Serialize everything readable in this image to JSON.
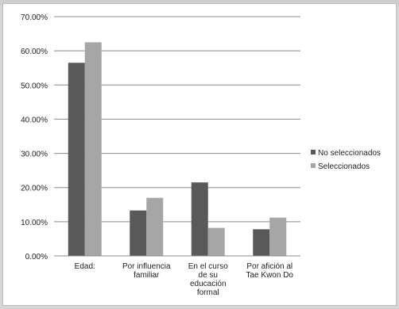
{
  "chart_data": {
    "type": "bar",
    "categories": [
      [
        "Edad:"
      ],
      [
        "Por influencia",
        "familiar"
      ],
      [
        "En el curso",
        "de su",
        "educación",
        "formal"
      ],
      [
        "Por afición al",
        "Tae Kwon Do"
      ]
    ],
    "series": [
      {
        "name": "No seleccionados",
        "values": [
          0.565,
          0.133,
          0.215,
          0.078
        ],
        "color": "#595959"
      },
      {
        "name": "Seleccionados",
        "values": [
          0.625,
          0.17,
          0.082,
          0.112
        ],
        "color": "#a6a6a6"
      }
    ],
    "y_ticks": [
      "0.00%",
      "10.00%",
      "20.00%",
      "30.00%",
      "40.00%",
      "50.00%",
      "60.00%",
      "70.00%"
    ],
    "ylim": [
      0,
      0.7
    ],
    "grid": true,
    "legend_position": "right"
  }
}
